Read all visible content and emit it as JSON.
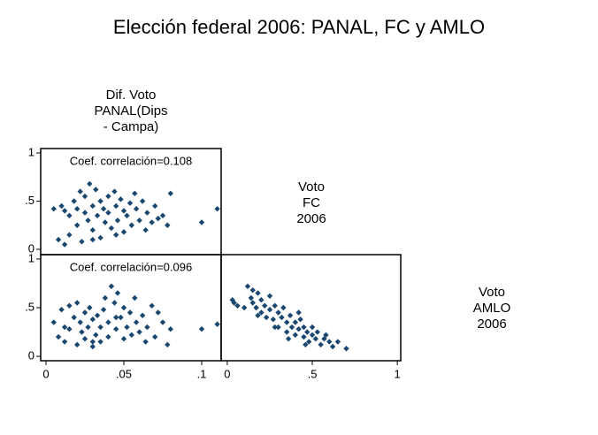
{
  "title": "Elección federal 2006: PANAL, FC y AMLO",
  "variables": [
    [
      "Dif. Voto",
      "PANAL(Dips",
      "- Campa)"
    ],
    [
      "Voto",
      "FC",
      "2006"
    ],
    [
      "Voto",
      "AMLO",
      "2006"
    ]
  ],
  "chart_data": [
    {
      "type": "scatter",
      "color": "#1a476f",
      "annotation": "Coef. correlación=0.108",
      "x": [
        0.005,
        0.008,
        0.01,
        0.012,
        0.015,
        0.015,
        0.018,
        0.02,
        0.02,
        0.022,
        0.023,
        0.025,
        0.025,
        0.027,
        0.028,
        0.03,
        0.03,
        0.032,
        0.033,
        0.035,
        0.035,
        0.037,
        0.038,
        0.04,
        0.04,
        0.042,
        0.044,
        0.045,
        0.046,
        0.048,
        0.05,
        0.05,
        0.052,
        0.054,
        0.055,
        0.057,
        0.058,
        0.06,
        0.062,
        0.064,
        0.065,
        0.068,
        0.07,
        0.072,
        0.075,
        0.078,
        0.08,
        0.1,
        0.11,
        0.012,
        0.03,
        0.045
      ],
      "y": [
        0.42,
        0.1,
        0.45,
        0.05,
        0.35,
        0.15,
        0.5,
        0.42,
        0.25,
        0.6,
        0.08,
        0.38,
        0.55,
        0.3,
        0.68,
        0.45,
        0.2,
        0.62,
        0.35,
        0.5,
        0.12,
        0.42,
        0.28,
        0.55,
        0.38,
        0.22,
        0.6,
        0.45,
        0.3,
        0.52,
        0.4,
        0.18,
        0.35,
        0.48,
        0.25,
        0.58,
        0.42,
        0.3,
        0.5,
        0.2,
        0.38,
        0.28,
        0.45,
        0.32,
        0.35,
        0.25,
        0.58,
        0.28,
        0.42,
        0.4,
        0.1,
        0.15
      ],
      "xlim": [
        -0.0034,
        0.1125
      ],
      "ylim": [
        -0.055,
        1.046
      ],
      "yticks": [
        1,
        {
          "value": 0.5,
          "label": ".5"
        },
        0
      ]
    },
    {
      "type": "scatter",
      "color": "#1a476f",
      "annotation": "Coef. correlación=0.096",
      "x": [
        0.005,
        0.008,
        0.01,
        0.012,
        0.015,
        0.015,
        0.018,
        0.02,
        0.02,
        0.022,
        0.023,
        0.025,
        0.025,
        0.027,
        0.028,
        0.03,
        0.03,
        0.032,
        0.033,
        0.035,
        0.035,
        0.037,
        0.038,
        0.04,
        0.04,
        0.042,
        0.044,
        0.045,
        0.046,
        0.048,
        0.05,
        0.05,
        0.052,
        0.054,
        0.055,
        0.057,
        0.058,
        0.06,
        0.062,
        0.064,
        0.065,
        0.068,
        0.07,
        0.072,
        0.075,
        0.078,
        0.08,
        0.1,
        0.11,
        0.012,
        0.03,
        0.045
      ],
      "y": [
        0.35,
        0.2,
        0.48,
        0.15,
        0.52,
        0.28,
        0.4,
        0.55,
        0.12,
        0.35,
        0.25,
        0.45,
        0.18,
        0.3,
        0.5,
        0.38,
        0.1,
        0.22,
        0.42,
        0.3,
        0.15,
        0.48,
        0.6,
        0.2,
        0.35,
        0.72,
        0.55,
        0.28,
        0.65,
        0.4,
        0.18,
        0.5,
        0.3,
        0.45,
        0.22,
        0.6,
        0.35,
        0.25,
        0.42,
        0.15,
        0.3,
        0.52,
        0.2,
        0.45,
        0.35,
        0.12,
        0.28,
        0.28,
        0.33,
        0.3,
        0.15,
        0.4
      ],
      "xlim": [
        -0.0034,
        0.1125
      ],
      "ylim": [
        -0.045,
        1.045
      ],
      "xticks": [
        0,
        {
          "value": 0.05,
          "label": ".05"
        },
        {
          "value": 0.1,
          "label": ".1"
        }
      ],
      "yticks": [
        1,
        {
          "value": 0.5,
          "label": ".5"
        },
        0
      ]
    },
    {
      "type": "scatter",
      "color": "#1a476f",
      "x": [
        0.03,
        0.04,
        0.06,
        0.1,
        0.12,
        0.14,
        0.15,
        0.17,
        0.18,
        0.2,
        0.2,
        0.22,
        0.23,
        0.25,
        0.25,
        0.27,
        0.28,
        0.3,
        0.3,
        0.32,
        0.33,
        0.35,
        0.35,
        0.37,
        0.38,
        0.4,
        0.4,
        0.42,
        0.43,
        0.45,
        0.45,
        0.47,
        0.48,
        0.5,
        0.5,
        0.52,
        0.53,
        0.55,
        0.57,
        0.58,
        0.6,
        0.62,
        0.65,
        0.7,
        0.18,
        0.28,
        0.36,
        0.42,
        0.15,
        0.46
      ],
      "y": [
        0.58,
        0.55,
        0.52,
        0.5,
        0.72,
        0.6,
        0.55,
        0.5,
        0.65,
        0.45,
        0.58,
        0.52,
        0.4,
        0.62,
        0.48,
        0.38,
        0.52,
        0.45,
        0.3,
        0.4,
        0.5,
        0.35,
        0.25,
        0.42,
        0.3,
        0.22,
        0.35,
        0.28,
        0.38,
        0.2,
        0.3,
        0.25,
        0.15,
        0.22,
        0.3,
        0.18,
        0.25,
        0.12,
        0.18,
        0.22,
        0.15,
        0.1,
        0.15,
        0.08,
        0.42,
        0.3,
        0.18,
        0.45,
        0.68,
        0.12
      ],
      "xlim": [
        -0.036,
        1.02
      ],
      "ylim": [
        -0.045,
        1.045
      ],
      "xticks": [
        0,
        {
          "value": 0.5,
          "label": ".5"
        },
        1
      ]
    }
  ]
}
